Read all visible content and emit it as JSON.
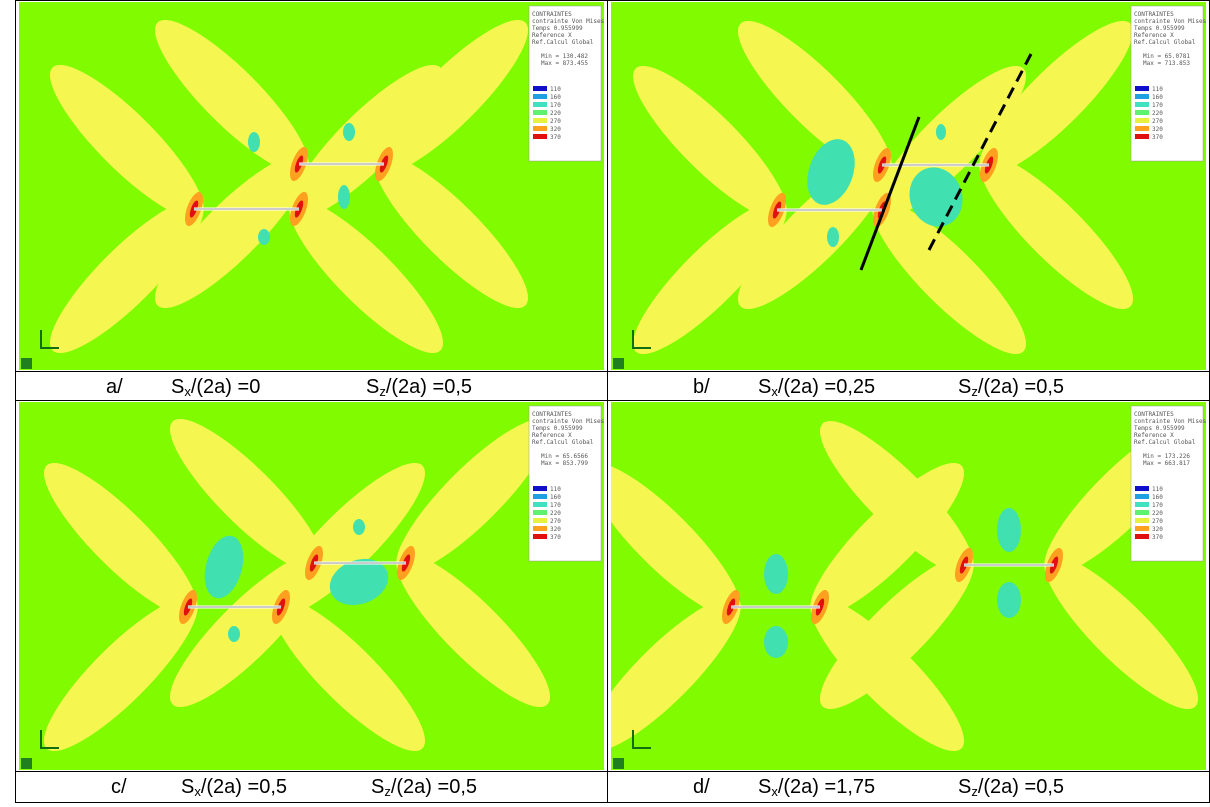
{
  "legend_title_lines": [
    "CONTRAINTES",
    "contrainte Von Mises",
    "Temps 0.955999",
    "Reference X",
    "Ref.Calcul Global"
  ],
  "legend_levels": [
    "110",
    "160",
    "170",
    "220",
    "270",
    "320",
    "370"
  ],
  "legend_colors": [
    "#1010c8",
    "#20a0e0",
    "#40e0c0",
    "#60f070",
    "#e8f040",
    "#ffa020",
    "#e01010"
  ],
  "panels": [
    {
      "caption": {
        "label": "a/",
        "terms": [
          {
            "symbol": "S",
            "subscript": "x",
            "text": "/(2a) =0"
          },
          {
            "symbol": "S",
            "subscript": "z",
            "text": "/(2a) =0,5"
          }
        ]
      },
      "min": "Min = 130.482",
      "max": "Max = 873.455"
    },
    {
      "caption": {
        "label": "b/",
        "terms": [
          {
            "symbol": "S",
            "subscript": "x",
            "text": "/(2a) =0,25"
          },
          {
            "symbol": "S",
            "subscript": "z",
            "text": "/(2a) =0,5"
          }
        ]
      },
      "min": "Min = 65.0781",
      "max": "Max = 713.853"
    },
    {
      "caption": {
        "label": "c/",
        "terms": [
          {
            "symbol": "S",
            "subscript": "x",
            "text": "/(2a) =0,5"
          },
          {
            "symbol": "S",
            "subscript": "z",
            "text": "/(2a) =0,5"
          }
        ]
      },
      "min": "Min = 65.6566",
      "max": "Max = 853.799"
    },
    {
      "caption": {
        "label": "d/",
        "terms": [
          {
            "symbol": "S",
            "subscript": "x",
            "text": "/(2a) =1,75"
          },
          {
            "symbol": "S",
            "subscript": "z",
            "text": "/(2a) =0,5"
          }
        ]
      },
      "min": "Min = 173.226",
      "max": "Max = 663.817"
    }
  ]
}
